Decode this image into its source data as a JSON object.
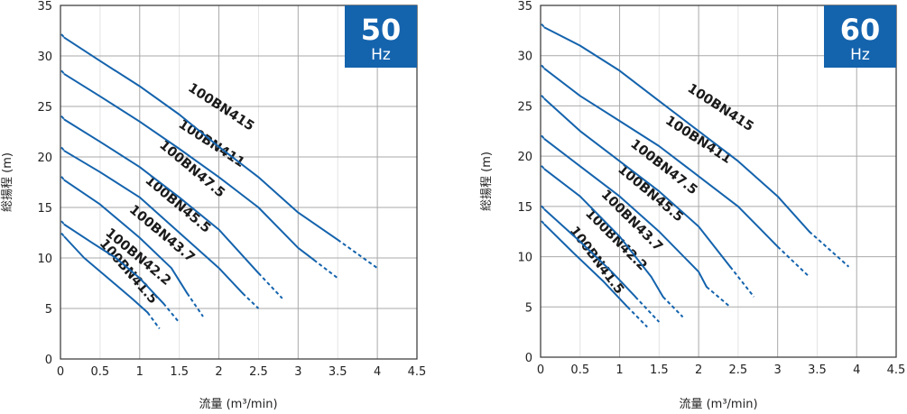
{
  "chart_data": [
    {
      "type": "line",
      "badge": {
        "value": "50",
        "unit": "Hz",
        "color": "#1463ad"
      },
      "xlabel": "流量 (m³/min)",
      "ylabel": "総揚程 (m)",
      "xlim": [
        0,
        4.5
      ],
      "ylim": [
        0,
        35
      ],
      "xticks": [
        "0",
        "0.5",
        "1",
        "1.5",
        "2",
        "2.5",
        "3",
        "3.5",
        "4",
        "4.5"
      ],
      "yticks": [
        "0",
        "5",
        "10",
        "15",
        "20",
        "25",
        "30",
        "35"
      ],
      "grid": true,
      "line_color": "#1463ad",
      "series": [
        {
          "name": "100BN41.5",
          "solid": [
            [
              0.05,
              12.1
            ],
            [
              0.3,
              10.0
            ],
            [
              0.6,
              8.0
            ],
            [
              0.9,
              6.0
            ],
            [
              1.1,
              4.6
            ]
          ],
          "dashed_end": [
            1.25,
            3.0
          ],
          "label_at": [
            0.82,
            8.4
          ],
          "label_angle": 49
        },
        {
          "name": "100BN42.2",
          "solid": [
            [
              0.05,
              13.3
            ],
            [
              0.4,
              11.5
            ],
            [
              0.7,
              10.0
            ],
            [
              1.0,
              8.0
            ],
            [
              1.3,
              5.5
            ]
          ],
          "dashed_end": [
            1.5,
            3.6
          ],
          "label_at": [
            0.95,
            9.8
          ],
          "label_angle": 40
        },
        {
          "name": "100BN43.7",
          "solid": [
            [
              0.05,
              17.7
            ],
            [
              0.5,
              15.3
            ],
            [
              1.0,
              12.0
            ],
            [
              1.4,
              9.0
            ],
            [
              1.6,
              6.5
            ]
          ],
          "dashed_end": [
            1.8,
            4.2
          ],
          "label_at": [
            1.25,
            12.1
          ],
          "label_angle": 40
        },
        {
          "name": "100BN45.5",
          "solid": [
            [
              0.05,
              20.6
            ],
            [
              0.5,
              18.5
            ],
            [
              1.0,
              16.0
            ],
            [
              1.5,
              12.5
            ],
            [
              2.0,
              9.0
            ],
            [
              2.3,
              6.5
            ]
          ],
          "dashed_end": [
            2.5,
            5.0
          ],
          "label_at": [
            1.45,
            15.0
          ],
          "label_angle": 40
        },
        {
          "name": "100BN47.5",
          "solid": [
            [
              0.05,
              23.7
            ],
            [
              0.5,
              21.5
            ],
            [
              1.0,
              19.0
            ],
            [
              1.5,
              16.0
            ],
            [
              2.0,
              12.8
            ],
            [
              2.5,
              8.5
            ]
          ],
          "dashed_end": [
            2.8,
            6.0
          ],
          "label_at": [
            1.63,
            18.5
          ],
          "label_angle": 40
        },
        {
          "name": "100BN411",
          "solid": [
            [
              0.05,
              28.2
            ],
            [
              0.5,
              26.0
            ],
            [
              1.0,
              23.5
            ],
            [
              1.5,
              20.8
            ],
            [
              2.0,
              18.0
            ],
            [
              2.5,
              15.0
            ],
            [
              3.0,
              11.0
            ],
            [
              3.2,
              9.8
            ]
          ],
          "dashed_end": [
            3.5,
            8.0
          ],
          "label_at": [
            1.88,
            21.0
          ],
          "label_angle": 33
        },
        {
          "name": "100BN415",
          "solid": [
            [
              0.05,
              31.8
            ],
            [
              0.5,
              29.5
            ],
            [
              1.0,
              27.0
            ],
            [
              1.5,
              24.2
            ],
            [
              2.0,
              21.0
            ],
            [
              2.5,
              18.0
            ],
            [
              3.0,
              14.5
            ],
            [
              3.5,
              11.8
            ]
          ],
          "dashed_end": [
            4.0,
            9.0
          ],
          "label_at": [
            2.0,
            24.6
          ],
          "label_angle": 33
        }
      ]
    },
    {
      "type": "line",
      "badge": {
        "value": "60",
        "unit": "Hz",
        "color": "#1463ad"
      },
      "xlabel": "流量 (m³/min)",
      "ylabel": "総揚程 (m)",
      "xlim": [
        0,
        4.5
      ],
      "ylim": [
        0,
        35
      ],
      "xticks": [
        "0",
        "0.5",
        "1",
        "1.5",
        "2",
        "2.5",
        "3",
        "3.5",
        "4",
        "4.5"
      ],
      "yticks": [
        "0",
        "5",
        "10",
        "15",
        "20",
        "25",
        "30",
        "35"
      ],
      "grid": true,
      "line_color": "#1463ad",
      "series": [
        {
          "name": "100BN41.5",
          "solid": [
            [
              0.05,
              13.2
            ],
            [
              0.4,
              10.5
            ],
            [
              0.8,
              7.5
            ],
            [
              1.1,
              5.0
            ]
          ],
          "dashed_end": [
            1.35,
            3.0
          ],
          "label_at": [
            0.67,
            9.4
          ],
          "label_angle": 53
        },
        {
          "name": "100BN42.2",
          "solid": [
            [
              0.05,
              14.7
            ],
            [
              0.5,
              11.5
            ],
            [
              0.9,
              8.5
            ],
            [
              1.2,
              6.0
            ]
          ],
          "dashed_end": [
            1.5,
            3.5
          ],
          "label_at": [
            0.92,
            11.4
          ],
          "label_angle": 45
        },
        {
          "name": "100BN43.7",
          "solid": [
            [
              0.05,
              18.7
            ],
            [
              0.5,
              16.0
            ],
            [
              1.0,
              12.0
            ],
            [
              1.4,
              8.0
            ],
            [
              1.55,
              6.0
            ]
          ],
          "dashed_end": [
            1.8,
            4.0
          ],
          "label_at": [
            1.12,
            13.3
          ],
          "label_angle": 45
        },
        {
          "name": "100BN45.5",
          "solid": [
            [
              0.05,
              21.7
            ],
            [
              0.5,
              19.0
            ],
            [
              1.0,
              16.0
            ],
            [
              1.5,
              12.5
            ],
            [
              2.0,
              8.5
            ],
            [
              2.1,
              7.0
            ]
          ],
          "dashed_end": [
            2.4,
            5.0
          ],
          "label_at": [
            1.36,
            16.0
          ],
          "label_angle": 40
        },
        {
          "name": "100BN47.5",
          "solid": [
            [
              0.05,
              25.7
            ],
            [
              0.5,
              22.5
            ],
            [
              1.0,
              19.5
            ],
            [
              1.5,
              16.5
            ],
            [
              2.0,
              13.0
            ],
            [
              2.4,
              9.0
            ]
          ],
          "dashed_end": [
            2.7,
            6.0
          ],
          "label_at": [
            1.53,
            18.6
          ],
          "label_angle": 38
        },
        {
          "name": "100BN411",
          "solid": [
            [
              0.05,
              28.7
            ],
            [
              0.5,
              26.0
            ],
            [
              1.0,
              23.5
            ],
            [
              1.5,
              21.0
            ],
            [
              2.0,
              18.0
            ],
            [
              2.5,
              15.0
            ],
            [
              3.0,
              11.0
            ]
          ],
          "dashed_end": [
            3.4,
            8.0
          ],
          "label_at": [
            1.97,
            21.3
          ],
          "label_angle": 33
        },
        {
          "name": "100BN415",
          "solid": [
            [
              0.05,
              32.8
            ],
            [
              0.5,
              31.0
            ],
            [
              1.0,
              28.5
            ],
            [
              1.5,
              25.5
            ],
            [
              2.0,
              22.5
            ],
            [
              2.5,
              19.5
            ],
            [
              3.0,
              16.0
            ],
            [
              3.4,
              12.5
            ]
          ],
          "dashed_end": [
            3.9,
            9.0
          ],
          "label_at": [
            2.25,
            24.5
          ],
          "label_angle": 33
        }
      ]
    }
  ]
}
